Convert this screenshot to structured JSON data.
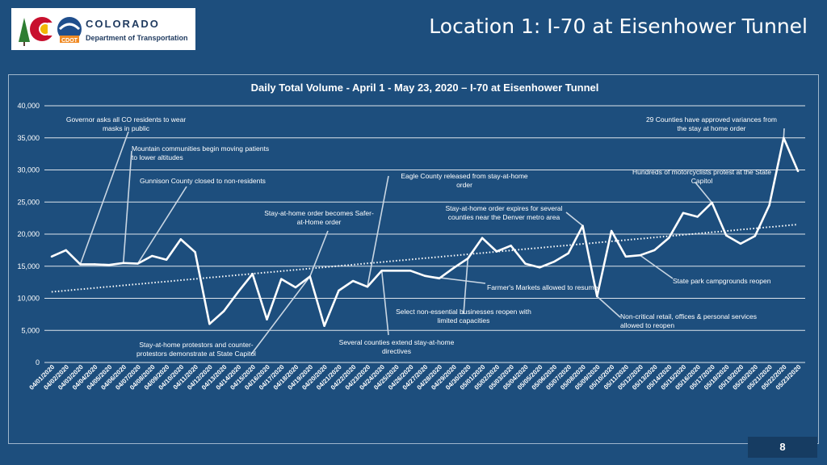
{
  "slide": {
    "title": "Location 1: I-70 at Eisenhower Tunnel",
    "page_number": "8",
    "logo": {
      "line1": "COLORADO",
      "line2": "Department of Transportation",
      "badge": "CDOT"
    }
  },
  "colors": {
    "background": "#1d4e7d",
    "line": "#ffffff",
    "text": "#ffffff",
    "logo_red": "#c8102e",
    "logo_blue": "#1f4e8c",
    "logo_gold": "#f2b705"
  },
  "chart_data": {
    "type": "line",
    "title": "Daily Total Volume - April 1 - May 23, 2020 – I-70 at Eisenhower Tunnel",
    "ylim": [
      0,
      40000
    ],
    "yticks": [
      "0",
      "5,000",
      "10,000",
      "15,000",
      "20,000",
      "25,000",
      "30,000",
      "35,000",
      "40,000"
    ],
    "grid": true,
    "trendline": {
      "style": "dotted",
      "start": 11000,
      "end": 21500
    },
    "x": [
      "04/01/2020",
      "04/02/2020",
      "04/03/2020",
      "04/04/2020",
      "04/05/2020",
      "04/06/2020",
      "04/07/2020",
      "04/08/2020",
      "04/09/2020",
      "04/10/2020",
      "04/11/2020",
      "04/12/2020",
      "04/13/2020",
      "04/14/2020",
      "04/15/2020",
      "04/16/2020",
      "04/17/2020",
      "04/18/2020",
      "04/19/2020",
      "04/20/2020",
      "04/21/2020",
      "04/22/2020",
      "04/23/2020",
      "04/24/2020",
      "04/25/2020",
      "04/26/2020",
      "04/27/2020",
      "04/28/2020",
      "04/29/2020",
      "04/30/2020",
      "05/01/2020",
      "05/02/2020",
      "05/03/2020",
      "05/04/2020",
      "05/05/2020",
      "05/06/2020",
      "05/07/2020",
      "05/08/2020",
      "05/09/2020",
      "05/10/2020",
      "05/11/2020",
      "05/12/2020",
      "05/13/2020",
      "05/14/2020",
      "05/15/2020",
      "05/16/2020",
      "05/17/2020",
      "05/18/2020",
      "05/19/2020",
      "05/20/2020",
      "05/21/2020",
      "05/22/2020",
      "05/23/2020"
    ],
    "values": [
      16500,
      17500,
      15300,
      15300,
      15200,
      15500,
      15400,
      16600,
      16000,
      19200,
      17200,
      6000,
      8000,
      11000,
      13800,
      6700,
      13000,
      11700,
      13400,
      5700,
      11200,
      12700,
      11800,
      14300,
      14300,
      14300,
      13500,
      13100,
      14700,
      16200,
      19400,
      17300,
      18200,
      15400,
      14800,
      15700,
      17000,
      21300,
      10300,
      20500,
      16500,
      16700,
      17500,
      19400,
      23300,
      22700,
      24900,
      19800,
      18500,
      19700,
      24500,
      35000,
      29800
    ],
    "annotations": [
      {
        "text": [
          "Governor asks all CO residents to wear",
          "masks in public"
        ],
        "point": 2
      },
      {
        "text": [
          "Mountain communities begin moving patients",
          "to lower altitudes"
        ],
        "point": 5
      },
      {
        "text": [
          "Gunnison County closed to non-residents"
        ],
        "point": 6
      },
      {
        "text": [
          "Stay-at-home order becomes Safer-",
          "at-Home order"
        ],
        "point": 18
      },
      {
        "text": [
          "Eagle County released from stay-at-home",
          "order"
        ],
        "point": 22
      },
      {
        "text": [
          "Stay-at-home order expires for several",
          "counties near the Denver metro area"
        ],
        "point": 37
      },
      {
        "text": [
          "29 Counties have approved variances from",
          "the stay at home order"
        ],
        "point": 51
      },
      {
        "text": [
          "Hundreds of motorcyclists protest at the State",
          "Capitol"
        ],
        "point": 46
      },
      {
        "text": [
          "State park campgrounds reopen"
        ],
        "point": 41
      },
      {
        "text": [
          "Farmer's Markets allowed to resume"
        ],
        "point": 26
      },
      {
        "text": [
          "Select non-essential businesses reopen with",
          "limited capacities"
        ],
        "point": 29
      },
      {
        "text": [
          "Non-critical retail, offices & personal services",
          "allowed to reopen"
        ],
        "point": 38
      },
      {
        "text": [
          "Several counties extend stay-at-home",
          "directives"
        ],
        "point": 23
      },
      {
        "text": [
          "Stay-at-home protestors and counter-",
          "protestors demonstrate at State Capitol"
        ],
        "point": 18
      }
    ]
  }
}
